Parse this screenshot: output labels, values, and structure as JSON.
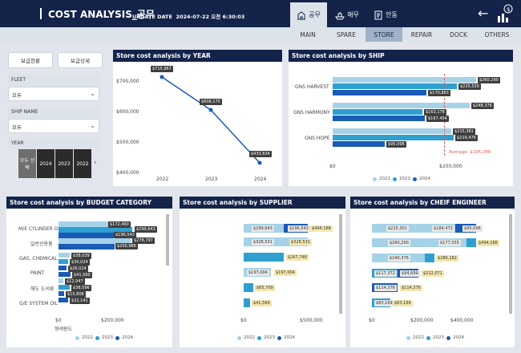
{
  "header": {
    "title": "COST ANALYSIS_공무",
    "update_label": "UPDATE DATE",
    "update_value": "2024-07-22 오전 6:30:03"
  },
  "dept_tabs": [
    {
      "label": "공무",
      "icon": "building-icon",
      "active": true
    },
    {
      "label": "해무",
      "icon": "ship-icon",
      "active": false
    },
    {
      "label": "안동",
      "icon": "document-icon",
      "active": false
    }
  ],
  "sub_tabs": [
    {
      "label": "MAIN"
    },
    {
      "label": "SPARE"
    },
    {
      "label": "STORE",
      "active": true
    },
    {
      "label": "REPAIR"
    },
    {
      "label": "DOCK"
    },
    {
      "label": "OTHERS"
    }
  ],
  "sidebar": {
    "btn1": "보급현황",
    "btn2": "보급상세",
    "fleet_label": "FLEET",
    "fleet_value": "모두",
    "ship_label": "SHIP NAME",
    "ship_value": "모두",
    "year_label": "YEAR",
    "years": [
      "모두 선택",
      "2024",
      "2023",
      "2022"
    ]
  },
  "colors": {
    "c2022": "#a6d2e8",
    "c2023": "#2f9fd0",
    "c2024": "#1a5bb5",
    "navy": "#13234a",
    "avg": "#e05a5a"
  },
  "charts": {
    "year": {
      "title": "Store cost analysis by YEAR",
      "labels": [
        "$715,967",
        "$608,175",
        "$433,634"
      ]
    },
    "ship": {
      "title": "Store cost analysis by SHIP",
      "avg_label": "Average: $195,286",
      "labels": [
        "$260,290",
        "$225,520",
        "$170,883",
        "$248,376",
        "$163,178",
        "$167,454",
        "$215,381",
        "$219,476",
        "$95,096"
      ]
    },
    "budget": {
      "title": "Store cost analysis by BUDGET CATEGORY",
      "labels": [
        "$172,460",
        "$299,643",
        "$196,543",
        "$278,797",
        "$200,986",
        "$38,039",
        "$30,024",
        "$26,024",
        "$41,560",
        "$12,947",
        "$38,596",
        "$15,808",
        "$32,141"
      ]
    },
    "supplier": {
      "title": "Store cost analysis by SUPPLIER",
      "labels": [
        "$299,643",
        "$196,543",
        "$494,188",
        "$328,531",
        "$328,531",
        "$267,748",
        "$197,004",
        "$197,004",
        "$65,709",
        "$41,569"
      ]
    },
    "engineer": {
      "title": "Store cost analysis by CHEIF ENGINEER",
      "labels": [
        "$215,301",
        "$184,472",
        "$95,096",
        "$260,290",
        "$177,555",
        "$494,188",
        "$240,376",
        "$286,182",
        "$117,372",
        "$94,699",
        "$212,071",
        "$114,376",
        "$114,376",
        "$83,169",
        "$83,169"
      ]
    }
  },
  "chart_data": [
    {
      "type": "line",
      "title": "Store cost analysis by YEAR",
      "x": [
        "2022",
        "2023",
        "2024"
      ],
      "values": [
        715967,
        608175,
        433634
      ],
      "ylim": [
        400000,
        720000
      ],
      "yticks": [
        "$400,000",
        "$500,000",
        "$600,000",
        "$700,000"
      ]
    },
    {
      "type": "bar",
      "title": "Store cost analysis by SHIP",
      "categories": [
        "GNS HARVEST",
        "GNS HARMONY",
        "GNS HOPE"
      ],
      "series": [
        {
          "name": "2022",
          "values": [
            260290,
            248376,
            215381
          ]
        },
        {
          "name": "2023",
          "values": [
            225520,
            163178,
            219476
          ]
        },
        {
          "name": "2024",
          "values": [
            170883,
            167454,
            95096
          ]
        }
      ],
      "xticks": [
        "$0",
        "$200,000"
      ],
      "average": 195286
    },
    {
      "type": "bar",
      "title": "Store cost analysis by BUDGET CATEGORY",
      "categories": [
        "M/E CYLINDER OIL",
        "일반선용품",
        "GAS, CHEMICAL",
        "PAINT",
        "해도 도서류",
        "G/E SYSTEM OIL",
        "형세원도"
      ],
      "xticks": [
        "$0",
        "$200,000"
      ]
    },
    {
      "type": "table",
      "title": "Store cost analysis by SUPPLIER",
      "xticks": [
        "$0",
        "$500,000"
      ]
    },
    {
      "type": "table",
      "title": "Store cost analysis by CHEIF ENGINEER",
      "xticks": [
        "$0",
        "$200,000",
        "$400,000"
      ]
    }
  ],
  "legend": {
    "l2022": "2022",
    "l2023": "2023",
    "l2024": "2024"
  }
}
